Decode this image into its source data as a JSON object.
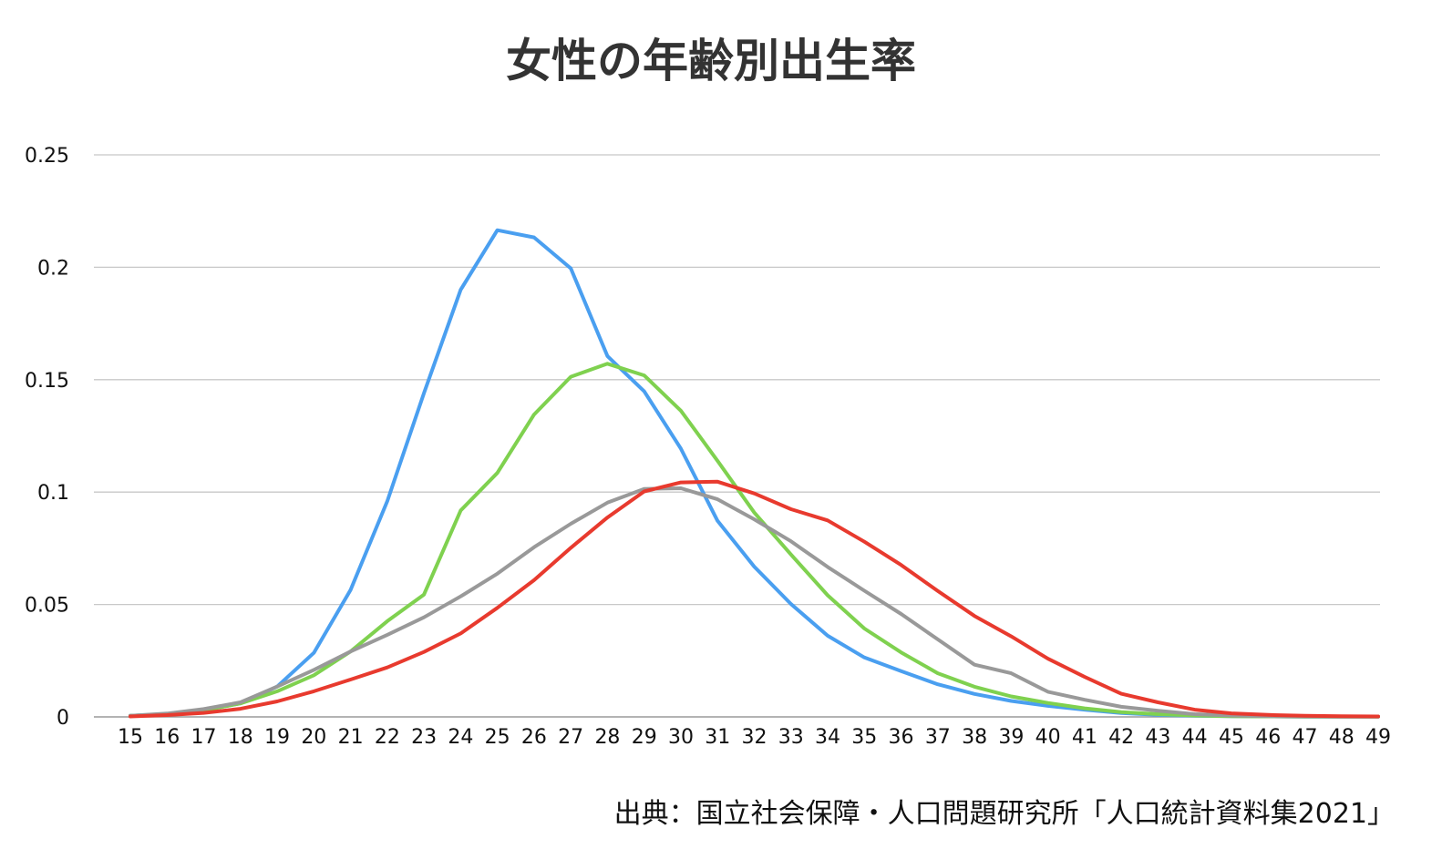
{
  "chart_data": {
    "type": "line",
    "title": "女性の年齢別出生率",
    "xlabel": "",
    "ylabel": "",
    "x": [
      15,
      16,
      17,
      18,
      19,
      20,
      21,
      22,
      23,
      24,
      25,
      26,
      27,
      28,
      29,
      30,
      31,
      32,
      33,
      34,
      35,
      36,
      37,
      38,
      39,
      40,
      41,
      42,
      43,
      44,
      45,
      46,
      47,
      48,
      49
    ],
    "ylim": [
      0,
      0.25
    ],
    "yticks": [
      0,
      0.05,
      0.1,
      0.15,
      0.2,
      0.25
    ],
    "ytick_labels": [
      "0",
      "0.05",
      "0.1",
      "0.15",
      "0.2",
      "0.25"
    ],
    "grid": true,
    "legend": "none",
    "series": [
      {
        "color": "#4a9ff0",
        "values": [
          0.0005,
          0.0012,
          0.003,
          0.006,
          0.0135,
          0.0285,
          0.0565,
          0.096,
          0.144,
          0.19,
          0.2165,
          0.2133,
          0.1995,
          0.1605,
          0.1448,
          0.1193,
          0.0872,
          0.0668,
          0.0502,
          0.0361,
          0.0264,
          0.0204,
          0.0145,
          0.0102,
          0.0071,
          0.0049,
          0.0032,
          0.0017,
          0.0009,
          0.0005,
          0.0003,
          0.0002,
          0.0001,
          0.0001,
          0.0001
        ]
      },
      {
        "color": "#7fd14f",
        "values": [
          0.0005,
          0.0012,
          0.003,
          0.006,
          0.0114,
          0.0185,
          0.0291,
          0.0426,
          0.0544,
          0.0918,
          0.1085,
          0.1345,
          0.1513,
          0.1571,
          0.1519,
          0.1362,
          0.1139,
          0.0909,
          0.0722,
          0.0541,
          0.0393,
          0.0287,
          0.0194,
          0.0134,
          0.0091,
          0.0062,
          0.0038,
          0.0021,
          0.0012,
          0.0006,
          0.0003,
          0.0002,
          0.0001,
          0.0001,
          0.0001
        ]
      },
      {
        "color": "#999999",
        "values": [
          0.0005,
          0.0015,
          0.0035,
          0.0065,
          0.0135,
          0.0209,
          0.0291,
          0.0365,
          0.0443,
          0.0536,
          0.0637,
          0.0755,
          0.0859,
          0.0953,
          0.1014,
          0.1017,
          0.0968,
          0.0879,
          0.0781,
          0.0667,
          0.0561,
          0.0458,
          0.0345,
          0.0232,
          0.0194,
          0.0112,
          0.0076,
          0.0045,
          0.0027,
          0.0012,
          0.0006,
          0.0003,
          0.0002,
          0.0001,
          0.0001
        ]
      },
      {
        "color": "#e83a2e",
        "values": [
          0.0002,
          0.0008,
          0.0018,
          0.0036,
          0.0069,
          0.0114,
          0.0166,
          0.022,
          0.0289,
          0.0371,
          0.0485,
          0.0608,
          0.0752,
          0.0887,
          0.1003,
          0.1043,
          0.1046,
          0.0994,
          0.0924,
          0.0874,
          0.0779,
          0.0676,
          0.056,
          0.0449,
          0.0358,
          0.0259,
          0.0178,
          0.0103,
          0.0065,
          0.0032,
          0.0016,
          0.0009,
          0.0005,
          0.0003,
          0.0002
        ]
      }
    ]
  },
  "source_note": "出典：国立社会保障・人口問題研究所「人口統計資料集2021」"
}
